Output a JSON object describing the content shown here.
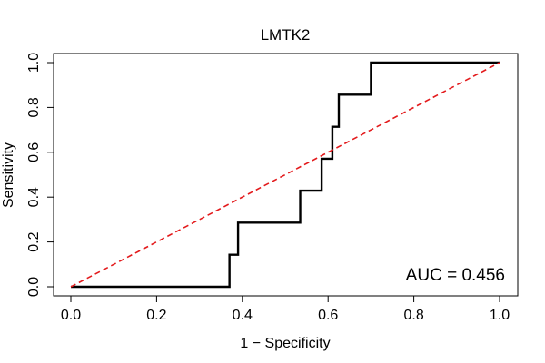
{
  "chart_data": {
    "type": "line",
    "title": "LMTK2",
    "xlabel": "1 − Specificity",
    "ylabel": "Sensitivity",
    "xlim": [
      0.0,
      1.0
    ],
    "ylim": [
      0.0,
      1.0
    ],
    "x_ticks": [
      "0.0",
      "0.2",
      "0.4",
      "0.6",
      "0.8",
      "1.0"
    ],
    "y_ticks": [
      "0.0",
      "0.2",
      "0.4",
      "0.6",
      "0.8",
      "1.0"
    ],
    "grid": false,
    "annotation": "AUC = 0.456",
    "series": [
      {
        "color": "#000000",
        "style": "solid",
        "x": [
          0.0,
          0.37,
          0.37,
          0.39,
          0.39,
          0.535,
          0.535,
          0.585,
          0.585,
          0.61,
          0.61,
          0.625,
          0.625,
          0.7,
          0.7,
          1.0
        ],
        "y": [
          0.0,
          0.0,
          0.143,
          0.143,
          0.286,
          0.286,
          0.429,
          0.429,
          0.571,
          0.571,
          0.714,
          0.714,
          0.857,
          0.857,
          1.0,
          1.0
        ]
      },
      {
        "color": "#e31a1c",
        "style": "dashed",
        "x": [
          0.0,
          1.0
        ],
        "y": [
          0.0,
          1.0
        ]
      }
    ]
  }
}
